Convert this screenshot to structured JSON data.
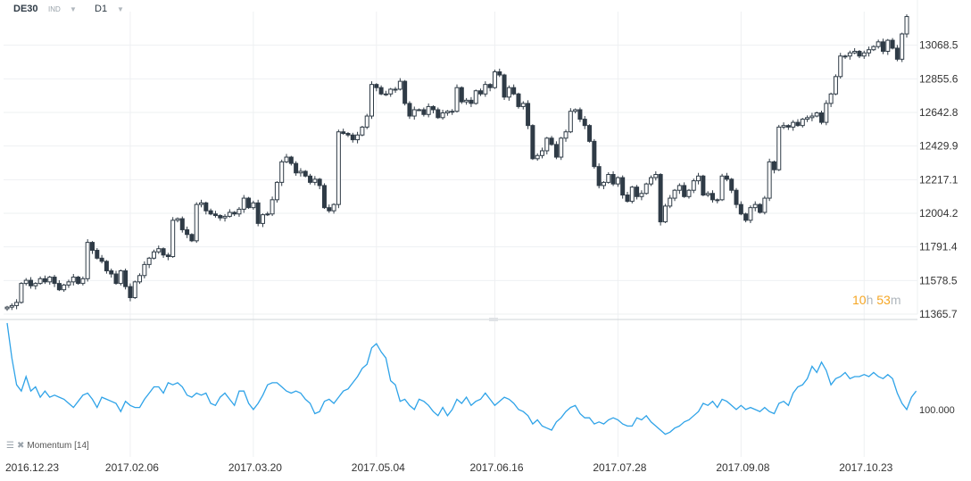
{
  "header": {
    "symbol": "DE30",
    "type": "IND",
    "timeframe": "D1"
  },
  "timer": {
    "hours": "10",
    "hours_unit": "h",
    "minutes": "53",
    "minutes_unit": "m"
  },
  "indicator": {
    "name": "Momentum",
    "period": "[14]"
  },
  "colors": {
    "candle": "#2f3b46",
    "momentum": "#2fa3e8",
    "grid": "#eef0f2",
    "separator": "#cfd4d8",
    "timer": "#f5a623"
  },
  "icons": {
    "settings": "lines-icon",
    "close": "close-icon"
  },
  "chart_data": [
    {
      "type": "candlestick",
      "title": "",
      "price_axis_ticks": [
        13068.5,
        12855.6,
        12642.8,
        12429.9,
        12217.1,
        12004.2,
        11791.4,
        11578.5,
        11365.7
      ],
      "ylim": [
        11365.7,
        13281.4
      ],
      "x_ticks": [
        "2016.12.23",
        "2017.02.06",
        "2017.03.20",
        "2017.05.04",
        "2017.06.16",
        "2017.07.28",
        "2017.09.08",
        "2017.10.23"
      ],
      "grid": true,
      "close": [
        11410,
        11420,
        11440,
        11560,
        11580,
        11545,
        11560,
        11590,
        11570,
        11600,
        11560,
        11520,
        11550,
        11570,
        11600,
        11560,
        11590,
        11820,
        11770,
        11720,
        11700,
        11640,
        11620,
        11560,
        11640,
        11540,
        11470,
        11570,
        11610,
        11680,
        11720,
        11760,
        11780,
        11740,
        11730,
        11960,
        11970,
        11900,
        11870,
        11830,
        12060,
        12070,
        12020,
        12000,
        11990,
        11975,
        11985,
        12010,
        12000,
        12030,
        12100,
        12040,
        12070,
        11940,
        11995,
        12000,
        12090,
        12200,
        12330,
        12360,
        12320,
        12260,
        12270,
        12240,
        12200,
        12220,
        12180,
        12040,
        12020,
        12060,
        12520,
        12510,
        12500,
        12470,
        12500,
        12550,
        12620,
        12820,
        12800,
        12760,
        12760,
        12790,
        12790,
        12840,
        12700,
        12620,
        12660,
        12660,
        12630,
        12680,
        12660,
        12610,
        12640,
        12650,
        12650,
        12800,
        12710,
        12720,
        12700,
        12780,
        12760,
        12820,
        12800,
        12900,
        12880,
        12740,
        12800,
        12760,
        12680,
        12700,
        12560,
        12350,
        12370,
        12400,
        12480,
        12440,
        12360,
        12480,
        12520,
        12650,
        12660,
        12600,
        12560,
        12460,
        12300,
        12180,
        12200,
        12250,
        12190,
        12230,
        12120,
        12080,
        12170,
        12110,
        12130,
        12190,
        12230,
        12250,
        11950,
        12050,
        12100,
        12150,
        12180,
        12110,
        12150,
        12210,
        12240,
        12120,
        12130,
        12090,
        12090,
        12240,
        12220,
        12150,
        12060,
        12000,
        11960,
        12040,
        12060,
        12010,
        12100,
        12330,
        12280,
        12550,
        12560,
        12550,
        12580,
        12560,
        12600,
        12610,
        12620,
        12640,
        12580,
        12700,
        12760,
        12870,
        13000,
        13000,
        13020,
        13030,
        13000,
        13020,
        13040,
        13060,
        13090,
        13030,
        13100,
        13050,
        12980,
        13140,
        13250
      ],
      "series": [
        {
          "name": "Momentum [14]",
          "reference_tick": 100.0,
          "values": [
            104.2,
            102.5,
            101.2,
            100.9,
            101.6,
            100.9,
            101.1,
            100.6,
            100.9,
            100.6,
            100.7,
            100.6,
            100.5,
            100.3,
            100.1,
            100.4,
            100.7,
            100.8,
            100.5,
            100.1,
            100.6,
            100.5,
            100.4,
            100.3,
            99.9,
            100.4,
            100.2,
            100.1,
            100.1,
            100.5,
            100.8,
            101.1,
            101.1,
            100.8,
            101.3,
            101.2,
            101.3,
            101.1,
            100.7,
            100.6,
            100.8,
            100.7,
            100.8,
            100.3,
            100.2,
            100.6,
            100.8,
            100.5,
            100.2,
            100.9,
            100.9,
            100.3,
            100.0,
            100.3,
            100.7,
            101.2,
            101.3,
            101.3,
            101.1,
            100.9,
            100.8,
            100.9,
            100.8,
            100.5,
            100.3,
            99.8,
            99.9,
            100.4,
            100.5,
            100.3,
            100.6,
            100.9,
            101.0,
            101.3,
            101.6,
            102.0,
            102.2,
            103.0,
            103.2,
            102.8,
            102.5,
            101.4,
            101.2,
            100.4,
            100.5,
            100.2,
            100.0,
            100.5,
            100.4,
            100.2,
            99.9,
            99.7,
            100.1,
            99.7,
            100.0,
            100.5,
            100.3,
            100.6,
            100.2,
            100.4,
            100.5,
            100.8,
            100.5,
            100.2,
            100.4,
            100.6,
            100.5,
            100.3,
            100.0,
            99.9,
            99.7,
            99.3,
            99.5,
            99.2,
            99.1,
            99.0,
            99.4,
            99.6,
            99.9,
            100.1,
            100.2,
            99.8,
            99.6,
            99.6,
            99.3,
            99.4,
            99.3,
            99.5,
            99.6,
            99.5,
            99.3,
            99.2,
            99.2,
            99.6,
            99.5,
            99.7,
            99.4,
            99.2,
            99.0,
            98.8,
            98.9,
            99.1,
            99.2,
            99.4,
            99.5,
            99.7,
            99.9,
            100.3,
            100.2,
            100.4,
            100.1,
            100.5,
            100.4,
            100.2,
            100.0,
            100.2,
            100.0,
            100.1,
            100.0,
            99.9,
            100.1,
            99.9,
            99.8,
            100.3,
            100.4,
            100.2,
            100.8,
            101.1,
            101.2,
            101.5,
            102.1,
            101.8,
            102.3,
            101.9,
            101.2,
            101.5,
            101.6,
            101.8,
            101.5,
            101.6,
            101.6,
            101.7,
            101.6,
            101.8,
            101.6,
            101.5,
            101.7,
            101.5,
            100.8,
            100.3,
            100.0,
            100.6,
            100.9
          ]
        }
      ]
    }
  ]
}
